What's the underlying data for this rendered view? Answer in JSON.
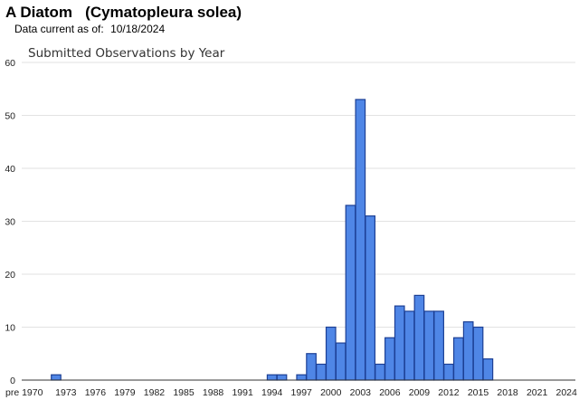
{
  "header": {
    "title": "A Diatom   (Cymatopleura solea)",
    "data_current_label": "Data current as of:",
    "data_current_date": "10/18/2024"
  },
  "chart_data": {
    "type": "bar",
    "title": "Submitted Observations by Year",
    "xlabel": "",
    "ylabel": "",
    "ylim": [
      0,
      60
    ],
    "yticks": [
      0,
      10,
      20,
      30,
      40,
      50,
      60
    ],
    "grid": true,
    "bar_color": "#4f86e6",
    "bar_edge_color": "#1c3f94",
    "xtick_labels": [
      "pre 1970",
      "1973",
      "1976",
      "1979",
      "1982",
      "1985",
      "1988",
      "1991",
      "1994",
      "1997",
      "2000",
      "2003",
      "2006",
      "2009",
      "2012",
      "2015",
      "2018",
      "2021",
      "2024"
    ],
    "categories": [
      "pre 1970",
      "1970",
      "1971",
      "1972",
      "1973",
      "1974",
      "1975",
      "1976",
      "1977",
      "1978",
      "1979",
      "1980",
      "1981",
      "1982",
      "1983",
      "1984",
      "1985",
      "1986",
      "1987",
      "1988",
      "1989",
      "1990",
      "1991",
      "1992",
      "1993",
      "1994",
      "1995",
      "1996",
      "1997",
      "1998",
      "1999",
      "2000",
      "2001",
      "2002",
      "2003",
      "2004",
      "2005",
      "2006",
      "2007",
      "2008",
      "2009",
      "2010",
      "2011",
      "2012",
      "2013",
      "2014",
      "2015",
      "2016",
      "2017",
      "2018",
      "2019",
      "2020",
      "2021",
      "2022",
      "2023",
      "2024"
    ],
    "values": [
      0,
      0,
      0,
      1,
      0,
      0,
      0,
      0,
      0,
      0,
      0,
      0,
      0,
      0,
      0,
      0,
      0,
      0,
      0,
      0,
      0,
      0,
      0,
      0,
      0,
      1,
      1,
      0,
      1,
      5,
      3,
      10,
      7,
      33,
      53,
      31,
      3,
      8,
      14,
      13,
      16,
      13,
      13,
      3,
      8,
      11,
      10,
      4,
      0,
      0,
      0,
      0,
      0,
      0,
      0,
      0
    ]
  }
}
